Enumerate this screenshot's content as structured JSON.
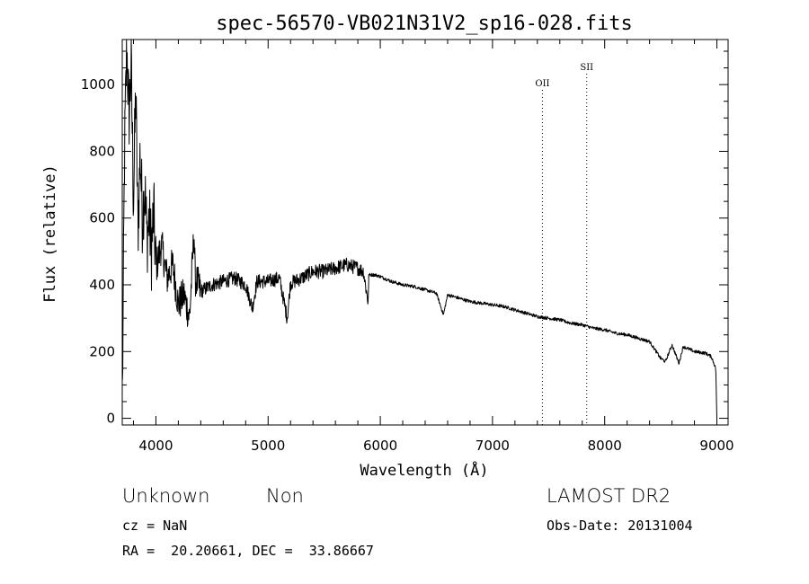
{
  "chart_data": {
    "type": "line",
    "title": "spec-56570-VB021N31V2_sp16-028.fits",
    "xlabel": "Wavelength (Å)",
    "ylabel": "Flux (relative)",
    "xlim": [
      3700,
      9100
    ],
    "ylim": [
      -20,
      1135
    ],
    "x_ticks": [
      4000,
      5000,
      6000,
      7000,
      8000,
      9000
    ],
    "y_ticks": [
      0,
      200,
      400,
      600,
      800,
      1000
    ],
    "grid": false,
    "spectrum": {
      "x": [
        3700,
        3720,
        3740,
        3760,
        3780,
        3800,
        3820,
        3840,
        3860,
        3880,
        3900,
        3920,
        3940,
        3960,
        3980,
        4000,
        4050,
        4100,
        4150,
        4200,
        4250,
        4300,
        4340,
        4350,
        4400,
        4450,
        4500,
        4600,
        4700,
        4800,
        4860,
        4900,
        5000,
        5100,
        5170,
        5200,
        5300,
        5400,
        5500,
        5600,
        5700,
        5800,
        5850,
        5890,
        5900,
        5950,
        6000,
        6100,
        6200,
        6300,
        6400,
        6500,
        6563,
        6600,
        6700,
        6800,
        6900,
        7000,
        7100,
        7200,
        7300,
        7400,
        7500,
        7600,
        7700,
        7800,
        7900,
        8000,
        8100,
        8200,
        8300,
        8400,
        8498,
        8542,
        8600,
        8662,
        8700,
        8800,
        8900,
        8950,
        8990,
        9000,
        9010
      ],
      "y": [
        0,
        780,
        1120,
        900,
        1050,
        650,
        980,
        560,
        800,
        600,
        700,
        540,
        600,
        500,
        620,
        450,
        520,
        420,
        460,
        340,
        370,
        300,
        560,
        420,
        380,
        390,
        400,
        410,
        420,
        400,
        330,
        410,
        410,
        420,
        300,
        405,
        420,
        440,
        440,
        450,
        460,
        450,
        440,
        350,
        430,
        430,
        425,
        410,
        400,
        395,
        385,
        375,
        310,
        370,
        360,
        350,
        345,
        340,
        335,
        325,
        315,
        305,
        300,
        295,
        285,
        280,
        270,
        265,
        255,
        250,
        240,
        230,
        180,
        170,
        220,
        165,
        215,
        200,
        195,
        185,
        150,
        0,
        0
      ]
    },
    "lines": [
      {
        "label": "OII",
        "x": 7445
      },
      {
        "label": "SII",
        "x": 7840
      }
    ]
  },
  "info": {
    "object_class": "Unknown",
    "subclass": "Non",
    "survey": "LAMOST DR2",
    "cz": "cz = NaN",
    "obs_date": "Obs-Date: 20131004",
    "coords": "RA =  20.20661, DEC =  33.86667"
  }
}
